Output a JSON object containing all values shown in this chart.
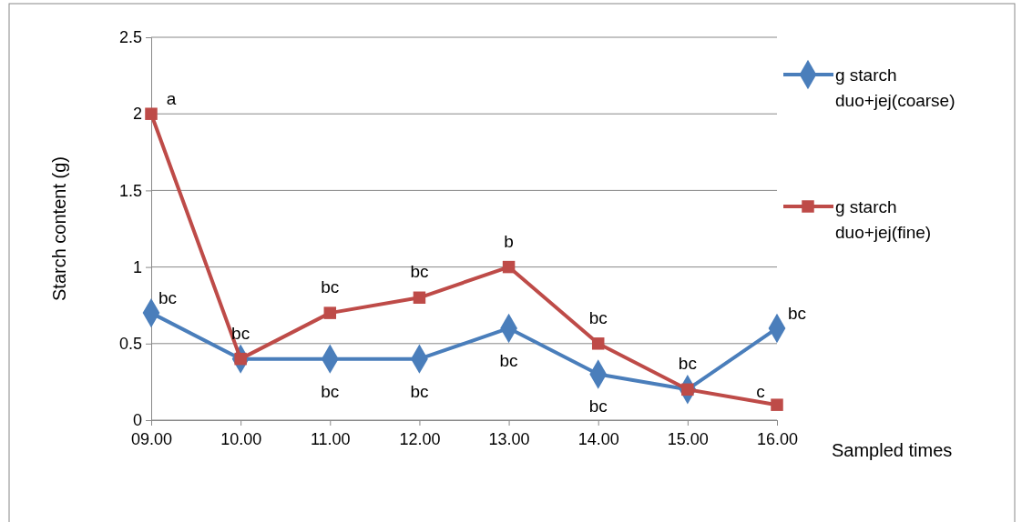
{
  "chart_data": {
    "type": "line",
    "xlabel": "Sampled times",
    "ylabel": "Starch content (g)",
    "categories": [
      "09.00",
      "10.00",
      "11.00",
      "12.00",
      "13.00",
      "14.00",
      "15.00",
      "16.00"
    ],
    "series": [
      {
        "name": "g starch duo+jej(coarse)",
        "color": "#4a7ebb",
        "marker": "diamond",
        "values": [
          0.7,
          0.4,
          0.4,
          0.4,
          0.6,
          0.3,
          0.2,
          0.6
        ]
      },
      {
        "name": "g starch duo+jej(fine)",
        "color": "#be4b48",
        "marker": "square",
        "values": [
          2,
          0.4,
          0.7,
          0.8,
          1,
          0.5,
          0.2,
          0.1
        ]
      }
    ],
    "ylim": [
      0,
      2.5
    ],
    "yticks": [
      0,
      0.5,
      1,
      1.5,
      2,
      2.5
    ],
    "grid": "y",
    "legend": "right",
    "line_style": "solid",
    "annotations": [
      {
        "text": "a",
        "x": "09.00",
        "y": 2
      },
      {
        "text": "bc",
        "x": "09.00",
        "y": 0.7
      },
      {
        "text": "bc",
        "x": "10.00",
        "y": 0.4
      },
      {
        "text": "bc",
        "x": "11.00",
        "y": 0.7
      },
      {
        "text": "bc",
        "x": "11.00",
        "y": 0.4
      },
      {
        "text": "bc",
        "x": "12.00",
        "y": 0.8
      },
      {
        "text": "bc",
        "x": "12.00",
        "y": 0.4
      },
      {
        "text": "b",
        "x": "13.00",
        "y": 1
      },
      {
        "text": "bc",
        "x": "13.00",
        "y": 0.6
      },
      {
        "text": "bc",
        "x": "14.00",
        "y": 0.5
      },
      {
        "text": "bc",
        "x": "14.00",
        "y": 0.3
      },
      {
        "text": "bc",
        "x": "15.00",
        "y": 0.2
      },
      {
        "text": "bc",
        "x": "16.00",
        "y": 0.6
      },
      {
        "text": "c",
        "x": "16.00",
        "y": 0.1
      }
    ]
  }
}
